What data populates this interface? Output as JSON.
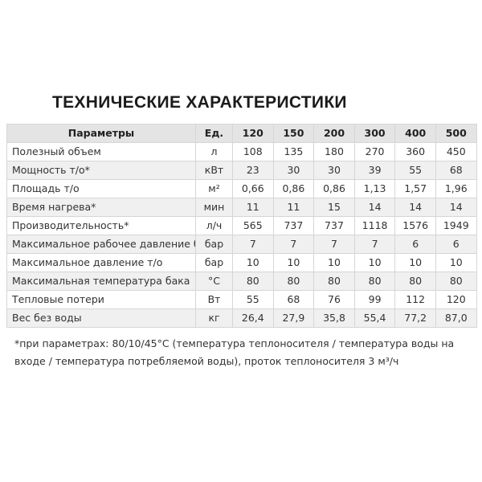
{
  "page": {
    "title": "ТЕХНИЧЕСКИЕ ХАРАКТЕРИСТИКИ",
    "footnote": "*при параметрах: 80/10/45°С (температура теплоносителя / температура воды на входе / температура потребляемой воды), проток теплоносителя 3 м³/ч"
  },
  "colors": {
    "header_bg": "#e4e4e4",
    "row_stripe_bg": "#f0f0f0",
    "border": "#d6d6d6",
    "text": "#333333"
  },
  "table": {
    "columns": [
      "Параметры",
      "Ед.",
      "120",
      "150",
      "200",
      "300",
      "400",
      "500"
    ],
    "rows": [
      {
        "label": "Полезный объем",
        "unit": "л",
        "values": [
          "108",
          "135",
          "180",
          "270",
          "360",
          "450"
        ]
      },
      {
        "label": "Мощность т/о*",
        "unit": "кВт",
        "values": [
          "23",
          "30",
          "30",
          "39",
          "55",
          "68"
        ]
      },
      {
        "label": "Площадь т/о",
        "unit": "м²",
        "values": [
          "0,66",
          "0,86",
          "0,86",
          "1,13",
          "1,57",
          "1,96"
        ]
      },
      {
        "label": "Время нагрева*",
        "unit": "мин",
        "values": [
          "11",
          "11",
          "15",
          "14",
          "14",
          "14"
        ]
      },
      {
        "label": "Производительность*",
        "unit": "л/ч",
        "values": [
          "565",
          "737",
          "737",
          "1118",
          "1576",
          "1949"
        ]
      },
      {
        "label": "Максимальное рабочее давление бака",
        "unit": "бар",
        "values": [
          "7",
          "7",
          "7",
          "7",
          "6",
          "6"
        ]
      },
      {
        "label": "Максимальное давление т/о",
        "unit": "бар",
        "values": [
          "10",
          "10",
          "10",
          "10",
          "10",
          "10"
        ]
      },
      {
        "label": "Максимальная температура бака",
        "unit": "°С",
        "values": [
          "80",
          "80",
          "80",
          "80",
          "80",
          "80"
        ]
      },
      {
        "label": "Тепловые потери",
        "unit": "Вт",
        "values": [
          "55",
          "68",
          "76",
          "99",
          "112",
          "120"
        ]
      },
      {
        "label": "Вес без воды",
        "unit": "кг",
        "values": [
          "26,4",
          "27,9",
          "35,8",
          "55,4",
          "77,2",
          "87,0"
        ]
      }
    ]
  }
}
